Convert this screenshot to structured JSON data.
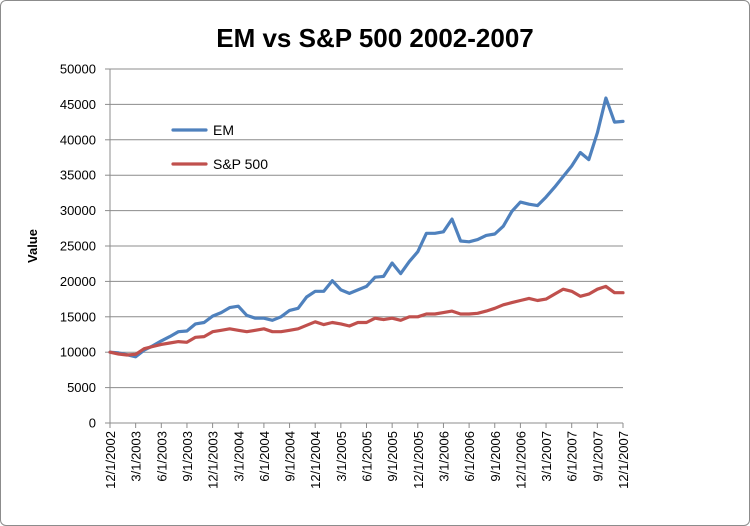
{
  "chart_data": {
    "type": "line",
    "title": "EM vs S&P 500 2002-2007",
    "xlabel": "",
    "ylabel": "Value",
    "ylim": [
      0,
      50000
    ],
    "y_ticks": [
      0,
      5000,
      10000,
      15000,
      20000,
      25000,
      30000,
      35000,
      40000,
      45000,
      50000
    ],
    "x_tick_labels": [
      "12/1/2002",
      "3/1/2003",
      "6/1/2003",
      "9/1/2003",
      "12/1/2003",
      "3/1/2004",
      "6/1/2004",
      "9/1/2004",
      "12/1/2004",
      "3/1/2005",
      "6/1/2005",
      "9/1/2005",
      "12/1/2005",
      "3/1/2006",
      "6/1/2006",
      "9/1/2006",
      "12/1/2006",
      "3/1/2007",
      "6/1/2007",
      "9/1/2007",
      "12/1/2007"
    ],
    "grid": true,
    "legend_position": "top-left",
    "series": [
      {
        "name": "EM",
        "color": "#4f81bd",
        "values": [
          10000,
          9900,
          9650,
          9350,
          10300,
          10900,
          11600,
          12200,
          12900,
          13000,
          14000,
          14200,
          15100,
          15600,
          16300,
          16500,
          15200,
          14800,
          14800,
          14500,
          15000,
          15900,
          16200,
          17800,
          18600,
          18600,
          20100,
          18800,
          18300,
          18800,
          19300,
          20600,
          20700,
          22600,
          21100,
          22800,
          24200,
          26800,
          26800,
          27000,
          28800,
          25700,
          25600,
          25900,
          26500,
          26700,
          27800,
          29900,
          31200,
          30900,
          30700,
          31900,
          33300,
          34800,
          36300,
          38200,
          37200,
          41000,
          45900,
          42500,
          42600
        ]
      },
      {
        "name": "S&P 500",
        "color": "#c0504d",
        "values": [
          10000,
          9750,
          9600,
          9700,
          10500,
          10800,
          11100,
          11300,
          11500,
          11400,
          12100,
          12200,
          12900,
          13100,
          13300,
          13100,
          12900,
          13100,
          13300,
          12900,
          12900,
          13100,
          13300,
          13800,
          14300,
          13900,
          14200,
          14000,
          13700,
          14200,
          14200,
          14800,
          14600,
          14800,
          14500,
          15000,
          15000,
          15400,
          15400,
          15600,
          15800,
          15400,
          15400,
          15500,
          15800,
          16200,
          16700,
          17000,
          17300,
          17600,
          17300,
          17500,
          18200,
          18900,
          18600,
          17900,
          18200,
          18900,
          19300,
          18400,
          18400
        ]
      }
    ]
  }
}
